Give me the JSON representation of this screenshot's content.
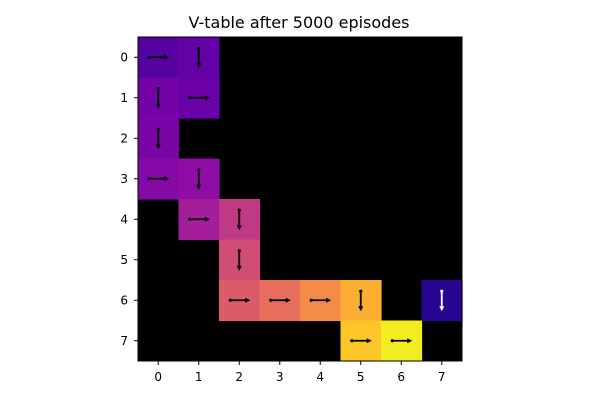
{
  "chart_data": {
    "type": "heatmap",
    "title": "V-table after 5000 episodes",
    "xlabel": "",
    "ylabel": "",
    "colormap": "plasma",
    "background_color": "#000000",
    "x_ticks": [
      "0",
      "1",
      "2",
      "3",
      "4",
      "5",
      "6",
      "7"
    ],
    "y_ticks": [
      "0",
      "1",
      "2",
      "3",
      "4",
      "5",
      "6",
      "7"
    ],
    "grid": false,
    "cells": [
      {
        "row": 0,
        "col": 0,
        "value": 0.15,
        "arrow": "right"
      },
      {
        "row": 0,
        "col": 1,
        "value": 0.18,
        "arrow": "down"
      },
      {
        "row": 1,
        "col": 0,
        "value": 0.22,
        "arrow": "down"
      },
      {
        "row": 1,
        "col": 1,
        "value": 0.2,
        "arrow": "right"
      },
      {
        "row": 2,
        "col": 0,
        "value": 0.24,
        "arrow": "down"
      },
      {
        "row": 3,
        "col": 0,
        "value": 0.27,
        "arrow": "right"
      },
      {
        "row": 3,
        "col": 1,
        "value": 0.3,
        "arrow": "down"
      },
      {
        "row": 4,
        "col": 1,
        "value": 0.36,
        "arrow": "right"
      },
      {
        "row": 4,
        "col": 2,
        "value": 0.45,
        "arrow": "down"
      },
      {
        "row": 5,
        "col": 2,
        "value": 0.52,
        "arrow": "down"
      },
      {
        "row": 6,
        "col": 2,
        "value": 0.57,
        "arrow": "right"
      },
      {
        "row": 6,
        "col": 3,
        "value": 0.63,
        "arrow": "right"
      },
      {
        "row": 6,
        "col": 4,
        "value": 0.72,
        "arrow": "right"
      },
      {
        "row": 6,
        "col": 5,
        "value": 0.82,
        "arrow": "down"
      },
      {
        "row": 6,
        "col": 7,
        "value": 0.05,
        "arrow": "down"
      },
      {
        "row": 7,
        "col": 5,
        "value": 0.88,
        "arrow": "right"
      },
      {
        "row": 7,
        "col": 6,
        "value": 0.97,
        "arrow": "right"
      }
    ]
  }
}
